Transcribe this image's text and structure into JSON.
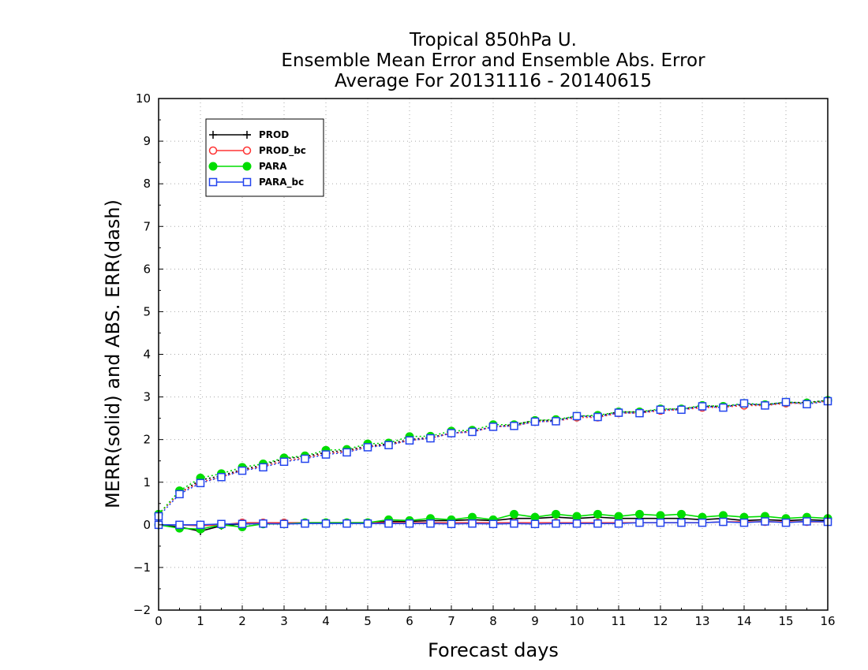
{
  "chart_data": {
    "type": "line",
    "title": [
      "Tropical 850hPa U.",
      "Ensemble Mean Error and Ensemble Abs. Error",
      "Average For 20131116 - 20140615"
    ],
    "xlabel": "Forecast days",
    "ylabel": "MERR(solid) and ABS. ERR(dash)",
    "xlim": [
      0,
      16
    ],
    "ylim": [
      -2,
      10
    ],
    "xticks": [
      "0",
      "1",
      "2",
      "3",
      "4",
      "5",
      "6",
      "7",
      "8",
      "9",
      "10",
      "11",
      "12",
      "13",
      "14",
      "15",
      "16"
    ],
    "yticks": [
      "−2",
      "−1",
      "0",
      "1",
      "2",
      "3",
      "4",
      "5",
      "6",
      "7",
      "8",
      "9",
      "10"
    ],
    "grid": true,
    "legend_position": "top-left",
    "x": [
      0,
      0.5,
      1,
      1.5,
      2,
      2.5,
      3,
      3.5,
      4,
      4.5,
      5,
      5.5,
      6,
      6.5,
      7,
      7.5,
      8,
      8.5,
      9,
      9.5,
      10,
      10.5,
      11,
      11.5,
      12,
      12.5,
      13,
      13.5,
      14,
      14.5,
      15,
      15.5,
      16
    ],
    "series": [
      {
        "name": "PROD",
        "color": "#000000",
        "marker": "plus",
        "mean_error": [
          0.0,
          -0.05,
          -0.15,
          -0.02,
          0.02,
          0.03,
          0.03,
          0.05,
          0.05,
          0.05,
          0.05,
          0.08,
          0.08,
          0.1,
          0.1,
          0.12,
          0.1,
          0.15,
          0.15,
          0.18,
          0.15,
          0.18,
          0.15,
          0.15,
          0.15,
          0.15,
          0.12,
          0.15,
          0.1,
          0.12,
          0.1,
          0.12,
          0.1
        ],
        "abs_error": [
          0.25,
          0.75,
          1.05,
          1.15,
          1.3,
          1.4,
          1.55,
          1.6,
          1.7,
          1.75,
          1.85,
          1.9,
          2.0,
          2.05,
          2.15,
          2.2,
          2.3,
          2.35,
          2.45,
          2.45,
          2.55,
          2.55,
          2.65,
          2.65,
          2.7,
          2.72,
          2.78,
          2.78,
          2.82,
          2.82,
          2.87,
          2.87,
          2.92
        ]
      },
      {
        "name": "PROD_bc",
        "color": "#ff3333",
        "marker": "circle-open",
        "mean_error": [
          0.0,
          0.0,
          -0.02,
          0.0,
          0.05,
          0.05,
          0.05,
          0.05,
          0.05,
          0.05,
          0.05,
          0.05,
          0.05,
          0.05,
          0.05,
          0.05,
          0.05,
          0.05,
          0.05,
          0.05,
          0.05,
          0.05,
          0.05,
          0.05,
          0.05,
          0.05,
          0.05,
          0.07,
          0.07,
          0.07,
          0.07,
          0.07,
          0.07
        ],
        "abs_error": [
          0.25,
          0.75,
          1.0,
          1.12,
          1.28,
          1.37,
          1.5,
          1.57,
          1.67,
          1.72,
          1.83,
          1.88,
          1.98,
          2.03,
          2.15,
          2.18,
          2.3,
          2.32,
          2.42,
          2.43,
          2.52,
          2.52,
          2.62,
          2.62,
          2.68,
          2.7,
          2.75,
          2.76,
          2.8,
          2.8,
          2.85,
          2.85,
          2.9
        ]
      },
      {
        "name": "PARA",
        "color": "#00dd00",
        "marker": "circle-filled",
        "mean_error": [
          0.0,
          -0.08,
          -0.1,
          0.0,
          -0.05,
          0.02,
          0.02,
          0.05,
          0.05,
          0.05,
          0.05,
          0.12,
          0.1,
          0.15,
          0.12,
          0.18,
          0.12,
          0.25,
          0.18,
          0.25,
          0.2,
          0.25,
          0.2,
          0.25,
          0.22,
          0.25,
          0.18,
          0.22,
          0.18,
          0.2,
          0.15,
          0.18,
          0.15
        ],
        "abs_error": [
          0.25,
          0.8,
          1.1,
          1.2,
          1.35,
          1.43,
          1.57,
          1.62,
          1.75,
          1.77,
          1.9,
          1.92,
          2.07,
          2.08,
          2.2,
          2.22,
          2.35,
          2.35,
          2.45,
          2.47,
          2.55,
          2.57,
          2.65,
          2.65,
          2.72,
          2.72,
          2.8,
          2.78,
          2.85,
          2.82,
          2.88,
          2.86,
          2.92
        ]
      },
      {
        "name": "PARA_bc",
        "color": "#2244ee",
        "marker": "square-open",
        "mean_error": [
          0.0,
          0.0,
          0.0,
          0.02,
          0.02,
          0.03,
          0.02,
          0.03,
          0.03,
          0.03,
          0.03,
          0.03,
          0.03,
          0.03,
          0.02,
          0.03,
          0.02,
          0.03,
          0.02,
          0.03,
          0.03,
          0.03,
          0.03,
          0.05,
          0.05,
          0.05,
          0.05,
          0.07,
          0.05,
          0.08,
          0.05,
          0.08,
          0.07
        ],
        "abs_error": [
          0.2,
          0.72,
          0.98,
          1.12,
          1.27,
          1.35,
          1.48,
          1.55,
          1.65,
          1.7,
          1.82,
          1.87,
          1.98,
          2.03,
          2.15,
          2.18,
          2.3,
          2.32,
          2.42,
          2.43,
          2.55,
          2.53,
          2.63,
          2.62,
          2.7,
          2.7,
          2.78,
          2.75,
          2.85,
          2.8,
          2.88,
          2.83,
          2.9
        ]
      }
    ]
  }
}
